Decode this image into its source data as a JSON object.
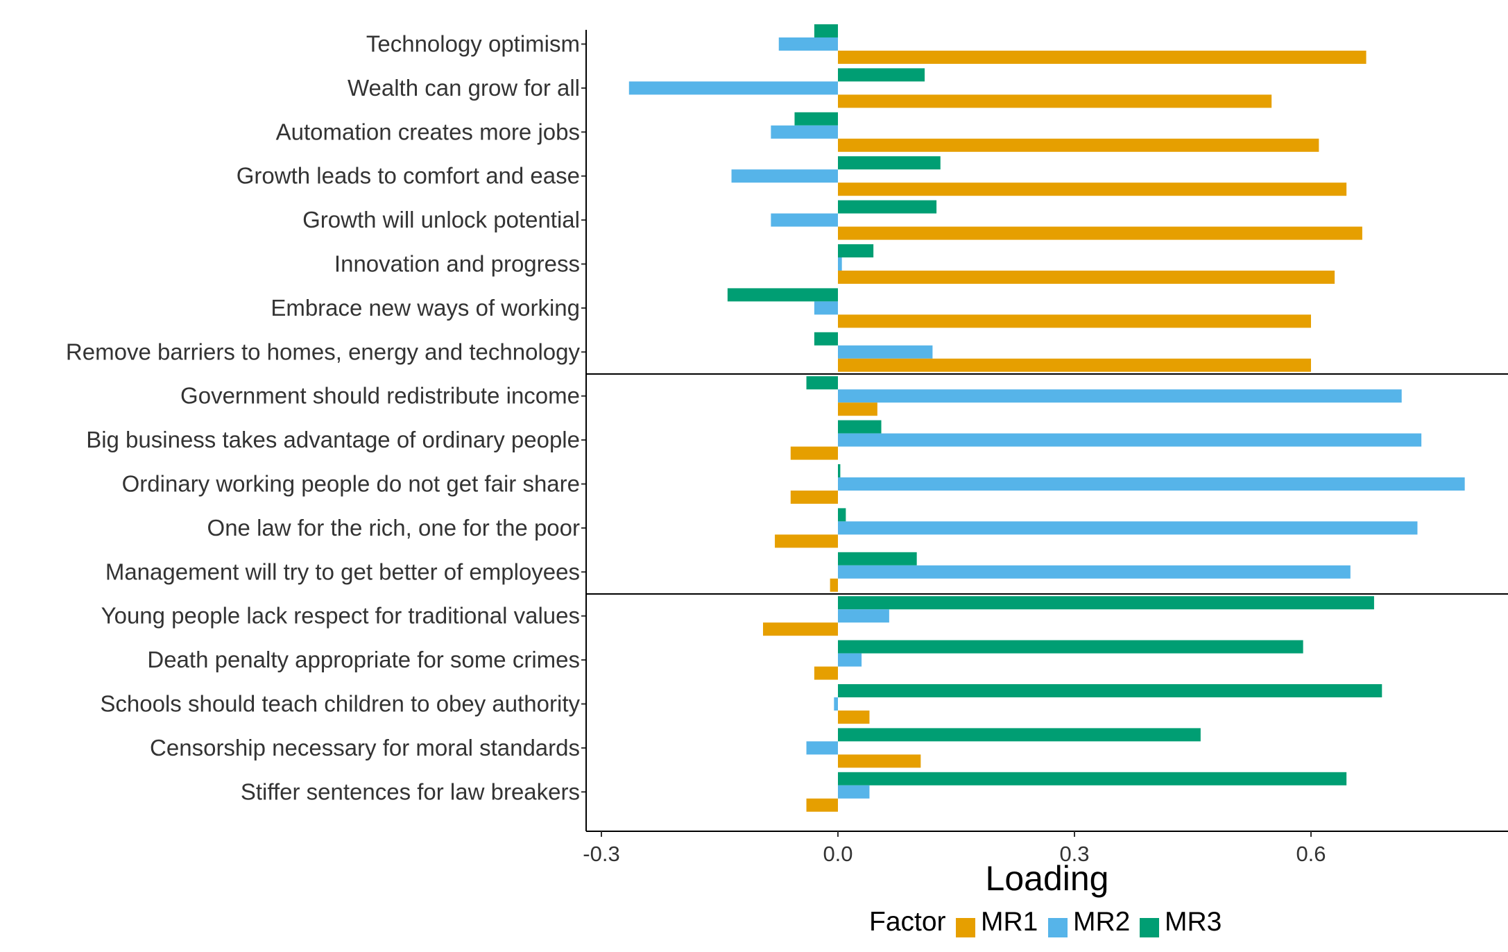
{
  "chart_data": {
    "type": "bar",
    "orientation": "horizontal",
    "xlabel": "Loading",
    "ylabel": "",
    "xlim": [
      -0.3,
      0.8
    ],
    "xticks": [
      "-0.3",
      "0.0",
      "0.3",
      "0.6"
    ],
    "grid": false,
    "legend": {
      "title": "Factor",
      "position": "bottom",
      "entries": [
        "MR1",
        "MR2",
        "MR3"
      ]
    },
    "categories": [
      "Technology optimism",
      "Wealth can grow for all",
      "Automation creates more jobs",
      "Growth leads to comfort and ease",
      "Growth will unlock potential",
      "Innovation and progress",
      "Embrace new ways of working",
      "Remove barriers to homes, energy and technology",
      "Government should redistribute income",
      "Big business takes advantage of ordinary people",
      "Ordinary working people do not get fair share",
      "One law for the rich, one for the poor",
      "Management will try to get better of employees",
      "Young people lack respect for traditional values",
      "Death penalty appropriate for some crimes",
      "Schools should teach children to obey authority",
      "Censorship necessary for moral standards",
      "Stiffer sentences for law breakers"
    ],
    "group_separators_after": [
      7,
      12
    ],
    "series": [
      {
        "name": "MR1",
        "color": "#E69F00",
        "values": [
          0.67,
          0.55,
          0.61,
          0.645,
          0.665,
          0.63,
          0.6,
          0.6,
          0.05,
          -0.06,
          -0.06,
          -0.08,
          -0.01,
          -0.095,
          -0.03,
          0.04,
          0.105,
          -0.04
        ]
      },
      {
        "name": "MR2",
        "color": "#56B4E9",
        "values": [
          -0.075,
          -0.265,
          -0.085,
          -0.135,
          -0.085,
          0.005,
          -0.03,
          0.12,
          0.715,
          0.74,
          0.795,
          0.735,
          0.65,
          0.065,
          0.03,
          -0.005,
          -0.04,
          0.04
        ]
      },
      {
        "name": "MR3",
        "color": "#009E73",
        "values": [
          -0.03,
          0.11,
          -0.055,
          0.13,
          0.125,
          0.045,
          -0.14,
          -0.03,
          -0.04,
          0.055,
          0.003,
          0.01,
          0.1,
          0.68,
          0.59,
          0.69,
          0.46,
          0.645
        ]
      }
    ]
  }
}
